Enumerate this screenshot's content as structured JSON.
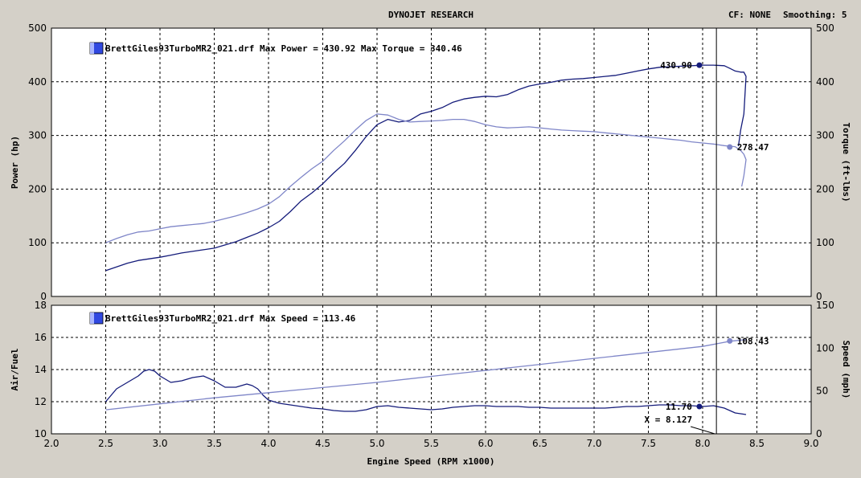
{
  "header": {
    "title": "DYNOJET RESEARCH",
    "cf": "CF: NONE",
    "smoothing": "Smoothing: 5"
  },
  "colors": {
    "power": "#141b7a",
    "torque": "#7f86c8",
    "airfuel": "#141b7a",
    "speed": "#7f86c8",
    "plot_bg": "#ffffff",
    "frame_bg": "#d4d0c8"
  },
  "chart_data": [
    {
      "type": "line",
      "name": "power-torque",
      "legend": "BrettGiles93TurboMR2_021.drf Max Power = 430.92 Max Torque = 340.46",
      "ylabel": "Power (hp)",
      "y2label": "Torque (ft-lbs)",
      "xlim": [
        2.0,
        9.0
      ],
      "ylim": [
        0,
        500
      ],
      "y2lim": [
        0,
        500
      ],
      "yticks": [
        "0",
        "100",
        "200",
        "300",
        "400",
        "500"
      ],
      "y2ticks": [
        "0",
        "100",
        "200",
        "300",
        "400",
        "500"
      ],
      "grid": true,
      "series": [
        {
          "key": "power",
          "axis": "left",
          "x": [
            2.5,
            2.6,
            2.7,
            2.8,
            2.9,
            3.0,
            3.1,
            3.2,
            3.3,
            3.4,
            3.5,
            3.6,
            3.7,
            3.8,
            3.9,
            4.0,
            4.1,
            4.2,
            4.3,
            4.4,
            4.5,
            4.6,
            4.7,
            4.8,
            4.9,
            5.0,
            5.1,
            5.2,
            5.3,
            5.4,
            5.5,
            5.6,
            5.7,
            5.8,
            5.9,
            6.0,
            6.1,
            6.2,
            6.3,
            6.4,
            6.5,
            6.6,
            6.7,
            6.8,
            6.9,
            7.0,
            7.1,
            7.2,
            7.3,
            7.4,
            7.5,
            7.6,
            7.7,
            7.8,
            7.9,
            8.0,
            8.1,
            8.2,
            8.25,
            8.3,
            8.35,
            8.38,
            8.4,
            8.38,
            8.35,
            8.33
          ],
          "y": [
            48,
            55,
            62,
            67,
            70,
            73,
            77,
            81,
            84,
            87,
            90,
            96,
            102,
            110,
            118,
            128,
            140,
            158,
            178,
            193,
            210,
            230,
            248,
            272,
            298,
            320,
            330,
            325,
            328,
            340,
            345,
            352,
            362,
            368,
            371,
            373,
            372,
            376,
            385,
            392,
            396,
            399,
            403,
            405,
            406,
            408,
            410,
            412,
            416,
            420,
            424,
            427,
            428,
            429,
            430,
            431,
            431,
            430,
            425,
            420,
            418,
            418,
            410,
            340,
            310,
            280
          ]
        },
        {
          "key": "torque",
          "axis": "right",
          "x": [
            2.5,
            2.6,
            2.7,
            2.8,
            2.9,
            3.0,
            3.1,
            3.2,
            3.3,
            3.4,
            3.5,
            3.6,
            3.7,
            3.8,
            3.9,
            4.0,
            4.1,
            4.2,
            4.3,
            4.4,
            4.5,
            4.6,
            4.7,
            4.8,
            4.9,
            5.0,
            5.1,
            5.2,
            5.3,
            5.4,
            5.5,
            5.6,
            5.7,
            5.8,
            5.9,
            6.0,
            6.1,
            6.2,
            6.3,
            6.4,
            6.5,
            6.6,
            6.7,
            6.8,
            6.9,
            7.0,
            7.1,
            7.2,
            7.3,
            7.4,
            7.5,
            7.6,
            7.7,
            7.8,
            7.9,
            8.0,
            8.1,
            8.2,
            8.25,
            8.3,
            8.35,
            8.38,
            8.4,
            8.38,
            8.36
          ],
          "y": [
            100,
            108,
            115,
            120,
            122,
            126,
            130,
            132,
            134,
            136,
            140,
            145,
            150,
            156,
            163,
            172,
            186,
            205,
            222,
            238,
            252,
            272,
            290,
            310,
            328,
            340,
            338,
            330,
            325,
            326,
            327,
            328,
            330,
            330,
            326,
            320,
            316,
            314,
            315,
            316,
            314,
            312,
            310,
            309,
            308,
            307,
            305,
            303,
            301,
            299,
            297,
            295,
            293,
            291,
            288,
            286,
            284,
            281,
            280,
            279,
            272,
            265,
            255,
            225,
            205
          ]
        }
      ],
      "annotations": [
        {
          "label": "430.90",
          "x": 7.97,
          "y": 430.9,
          "series": "power"
        },
        {
          "label": "278.47",
          "x": 8.25,
          "y": 278.47,
          "series": "torque"
        }
      ]
    },
    {
      "type": "line",
      "name": "airfuel-speed",
      "legend": "BrettGiles93TurboMR2_021.drf Max Speed = 113.46",
      "ylabel": "Air/Fuel",
      "y2label": "Speed (mph)",
      "xlabel": "Engine Speed (RPM x1000)",
      "xlim": [
        2.0,
        9.0
      ],
      "ylim": [
        10,
        18
      ],
      "y2lim": [
        0,
        150
      ],
      "xticks": [
        "2.0",
        "2.5",
        "3.0",
        "3.5",
        "4.0",
        "4.5",
        "5.0",
        "5.5",
        "6.0",
        "6.5",
        "7.0",
        "7.5",
        "8.0",
        "8.5",
        "9.0"
      ],
      "yticks": [
        "10",
        "12",
        "14",
        "16",
        "18"
      ],
      "y2ticks": [
        "0",
        "50",
        "100",
        "150"
      ],
      "grid": true,
      "series": [
        {
          "key": "airfuel",
          "axis": "left",
          "x": [
            2.5,
            2.6,
            2.7,
            2.8,
            2.85,
            2.9,
            2.95,
            3.0,
            3.1,
            3.2,
            3.3,
            3.4,
            3.5,
            3.6,
            3.7,
            3.8,
            3.85,
            3.9,
            3.95,
            4.0,
            4.1,
            4.2,
            4.3,
            4.4,
            4.5,
            4.6,
            4.7,
            4.8,
            4.9,
            5.0,
            5.1,
            5.2,
            5.3,
            5.4,
            5.5,
            5.6,
            5.7,
            5.8,
            5.9,
            6.0,
            6.1,
            6.2,
            6.3,
            6.4,
            6.5,
            6.6,
            6.7,
            6.8,
            6.9,
            7.0,
            7.1,
            7.2,
            7.3,
            7.4,
            7.5,
            7.6,
            7.7,
            7.8,
            7.9,
            8.0,
            8.1,
            8.2,
            8.3,
            8.4
          ],
          "y": [
            12.0,
            12.8,
            13.2,
            13.6,
            13.9,
            14.0,
            13.9,
            13.6,
            13.2,
            13.3,
            13.5,
            13.6,
            13.3,
            12.9,
            12.9,
            13.1,
            13.0,
            12.8,
            12.4,
            12.1,
            11.9,
            11.8,
            11.7,
            11.6,
            11.55,
            11.45,
            11.4,
            11.4,
            11.5,
            11.7,
            11.75,
            11.65,
            11.6,
            11.55,
            11.5,
            11.55,
            11.65,
            11.7,
            11.75,
            11.75,
            11.7,
            11.7,
            11.7,
            11.65,
            11.65,
            11.6,
            11.6,
            11.6,
            11.6,
            11.6,
            11.6,
            11.65,
            11.7,
            11.7,
            11.75,
            11.8,
            11.8,
            11.75,
            11.75,
            11.7,
            11.75,
            11.6,
            11.3,
            11.2
          ]
        },
        {
          "key": "speed",
          "axis": "right",
          "x": [
            2.5,
            3.0,
            3.5,
            4.0,
            4.5,
            5.0,
            5.5,
            6.0,
            6.5,
            7.0,
            7.5,
            8.0,
            8.25,
            8.4
          ],
          "y": [
            28,
            35,
            42,
            48,
            54,
            60,
            67,
            74,
            81,
            88,
            95,
            102,
            108,
            110
          ]
        }
      ],
      "annotations": [
        {
          "label": "11.70",
          "x": 7.97,
          "y": 11.7,
          "series": "airfuel"
        },
        {
          "label": "108.43",
          "x": 8.25,
          "y": 108.43,
          "series": "speed"
        }
      ],
      "cursor": {
        "label": "X = 8.127",
        "x": 8.127
      }
    }
  ]
}
